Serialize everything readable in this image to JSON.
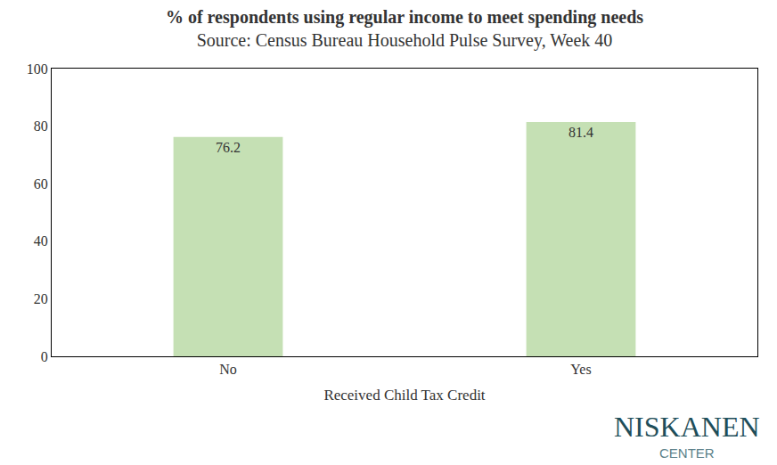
{
  "chart_data": {
    "type": "bar",
    "title": "% of respondents using regular income to meet spending needs",
    "subtitle": "Source: Census Bureau Household Pulse Survey, Week 40",
    "x_label": "Received Child Tax Credit",
    "categories": [
      "No",
      "Yes"
    ],
    "values": [
      76.2,
      81.4
    ],
    "color": "#c5e0b4",
    "ylim": [
      0,
      100
    ],
    "yticks": [
      0,
      20,
      40,
      60,
      80,
      100
    ],
    "grid": false,
    "data_labels": true,
    "annotations": [
      "NISKANEN",
      "CENTER"
    ]
  }
}
